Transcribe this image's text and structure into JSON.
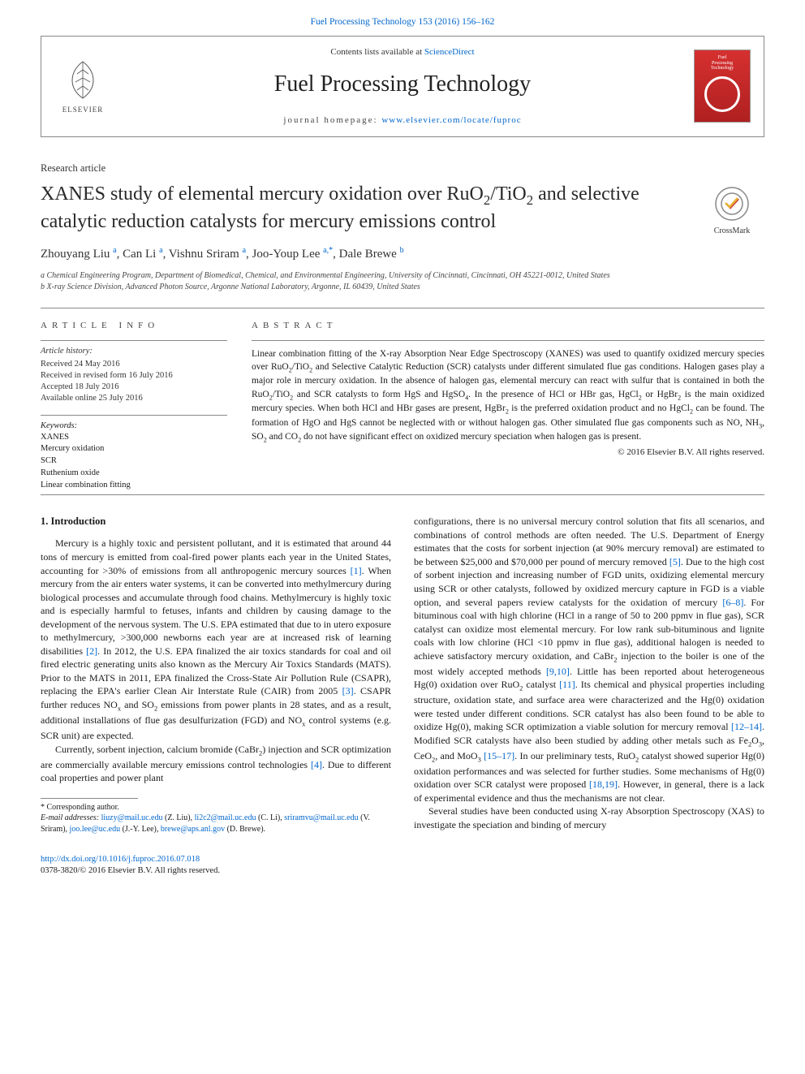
{
  "topbar": {
    "citation_prefix": "Fuel Processing Technology 153 (2016) 156–162",
    "citation_link_text": "Fuel Processing Technology 153 (2016) 156–162"
  },
  "header": {
    "contents_prefix": "Contents lists available at ",
    "contents_link": "ScienceDirect",
    "journal_name": "Fuel Processing Technology",
    "homepage_prefix": "journal homepage: ",
    "homepage_url": "www.elsevier.com/locate/fuproc",
    "elsevier_label": "ELSEVIER",
    "cover_label_1": "Fuel",
    "cover_label_2": "Processing",
    "cover_label_3": "Technology"
  },
  "article": {
    "type": "Research article",
    "title_html": "XANES study of elemental mercury oxidation over RuO<sub>2</sub>/TiO<sub>2</sub> and selective catalytic reduction catalysts for mercury emissions control",
    "authors_html": "Zhouyang Liu <span class='aff'>a</span>, Can Li <span class='aff'>a</span>, Vishnu Sriram <span class='aff'>a</span>, Joo-Youp Lee <span class='aff'>a,*</span>, Dale Brewe <span class='aff'>b</span>",
    "affiliations": [
      "a  Chemical Engineering Program, Department of Biomedical, Chemical, and Environmental Engineering, University of Cincinnati, Cincinnati, OH 45221-0012, United States",
      "b  X-ray Science Division, Advanced Photon Source, Argonne National Laboratory, Argonne, IL 60439, United States"
    ],
    "crossmark_label": "CrossMark"
  },
  "info": {
    "heading": "ARTICLE INFO",
    "history_head": "Article history:",
    "history_lines": [
      "Received 24 May 2016",
      "Received in revised form 16 July 2016",
      "Accepted 18 July 2016",
      "Available online 25 July 2016"
    ],
    "keywords_head": "Keywords:",
    "keywords": [
      "XANES",
      "Mercury oxidation",
      "SCR",
      "Ruthenium oxide",
      "Linear combination fitting"
    ]
  },
  "abstract": {
    "heading": "ABSTRACT",
    "text_html": "Linear combination fitting of the X-ray Absorption Near Edge Spectroscopy (XANES) was used to quantify oxidized mercury species over RuO<sub>2</sub>/TiO<sub>2</sub> and Selective Catalytic Reduction (SCR) catalysts under different simulated flue gas conditions. Halogen gases play a major role in mercury oxidation. In the absence of halogen gas, elemental mercury can react with sulfur that is contained in both the RuO<sub>2</sub>/TiO<sub>2</sub> and SCR catalysts to form HgS and HgSO<sub>4</sub>. In the presence of HCl or HBr gas, HgCl<sub>2</sub> or HgBr<sub>2</sub> is the main oxidized mercury species. When both HCl and HBr gases are present, HgBr<sub>2</sub> is the preferred oxidation product and no HgCl<sub>2</sub> can be found. The formation of HgO and HgS cannot be neglected with or without halogen gas. Other simulated flue gas components such as NO, NH<sub>3</sub>, SO<sub>2</sub> and CO<sub>2</sub> do not have significant effect on oxidized mercury speciation when halogen gas is present.",
    "copyright": "© 2016 Elsevier B.V. All rights reserved."
  },
  "body": {
    "section_heading": "1. Introduction",
    "p1_html": "Mercury is a highly toxic and persistent pollutant, and it is estimated that around 44 tons of mercury is emitted from coal-fired power plants each year in the United States, accounting for >30% of emissions from all anthropogenic mercury sources <a class='ref' href='#'>[1]</a>. When mercury from the air enters water systems, it can be converted into methylmercury during biological processes and accumulate through food chains. Methylmercury is highly toxic and is especially harmful to fetuses, infants and children by causing damage to the development of the nervous system. The U.S. EPA estimated that due to in utero exposure to methylmercury, >300,000 newborns each year are at increased risk of learning disabilities <a class='ref' href='#'>[2]</a>. In 2012, the U.S. EPA finalized the air toxics standards for coal and oil fired electric generating units also known as the Mercury Air Toxics Standards (MATS). Prior to the MATS in 2011, EPA finalized the Cross-State Air Pollution Rule (CSAPR), replacing the EPA's earlier Clean Air Interstate Rule (CAIR) from 2005 <a class='ref' href='#'>[3]</a>. CSAPR further reduces NO<sub>x</sub> and SO<sub>2</sub> emissions from power plants in 28 states, and as a result, additional installations of flue gas desulfurization (FGD) and NO<sub>x</sub> control systems (e.g. SCR unit) are expected.",
    "p2_html": "Currently, sorbent injection, calcium bromide (CaBr<sub>2</sub>) injection and SCR optimization are commercially available mercury emissions control technologies <a class='ref' href='#'>[4]</a>. Due to different coal properties and power plant",
    "p3_html": "configurations, there is no universal mercury control solution that fits all scenarios, and combinations of control methods are often needed. The U.S. Department of Energy estimates that the costs for sorbent injection (at 90% mercury removal) are estimated to be between $25,000 and $70,000 per pound of mercury removed <a class='ref' href='#'>[5]</a>. Due to the high cost of sorbent injection and increasing number of FGD units, oxidizing elemental mercury using SCR or other catalysts, followed by oxidized mercury capture in FGD is a viable option, and several papers review catalysts for the oxidation of mercury <a class='ref' href='#'>[6–8]</a>. For bituminous coal with high chlorine (HCl in a range of 50 to 200 ppmv in flue gas), SCR catalyst can oxidize most elemental mercury. For low rank sub-bituminous and lignite coals with low chlorine (HCl <10 ppmv in flue gas), additional halogen is needed to achieve satisfactory mercury oxidation, and CaBr<sub>2</sub> injection to the boiler is one of the most widely accepted methods <a class='ref' href='#'>[9,10]</a>. Little has been reported about heterogeneous Hg(0) oxidation over RuO<sub>2</sub> catalyst <a class='ref' href='#'>[11]</a>. Its chemical and physical properties including structure, oxidation state, and surface area were characterized and the Hg(0) oxidation were tested under different conditions. SCR catalyst has also been found to be able to oxidize Hg(0), making SCR optimization a viable solution for mercury removal <a class='ref' href='#'>[12–14]</a>. Modified SCR catalysts have also been studied by adding other metals such as Fe<sub>2</sub>O<sub>3</sub>, CeO<sub>2</sub>, and MoO<sub>3</sub> <a class='ref' href='#'>[15–17]</a>. In our preliminary tests, RuO<sub>2</sub> catalyst showed superior Hg(0) oxidation performances and was selected for further studies. Some mechanisms of Hg(0) oxidation over SCR catalyst were proposed <a class='ref' href='#'>[18,19]</a>. However, in general, there is a lack of experimental evidence and thus the mechanisms are not clear.",
    "p4_html": "Several studies have been conducted using X-ray Absorption Spectroscopy (XAS) to investigate the speciation and binding of mercury"
  },
  "footnotes": {
    "corresponding": "* Corresponding author.",
    "emails_label": "E-mail addresses: ",
    "emails_html": "<a href='#'>liuzy@mail.uc.edu</a> (Z. Liu), <a href='#'>li2c2@mail.uc.edu</a> (C. Li), <a href='#'>sriramvu@mail.uc.edu</a> (V. Sriram), <a href='#'>joo.lee@uc.edu</a> (J.-Y. Lee), <a href='#'>brewe@aps.anl.gov</a> (D. Brewe)."
  },
  "footer": {
    "doi": "http://dx.doi.org/10.1016/j.fuproc.2016.07.018",
    "issn_line": "0378-3820/© 2016 Elsevier B.V. All rights reserved."
  },
  "colors": {
    "link": "#0066cc",
    "text": "#1a1a1a",
    "rule": "#888888",
    "cover_top": "#d63030",
    "cover_bottom": "#b02020",
    "elsevier_orange": "#e67a17"
  }
}
